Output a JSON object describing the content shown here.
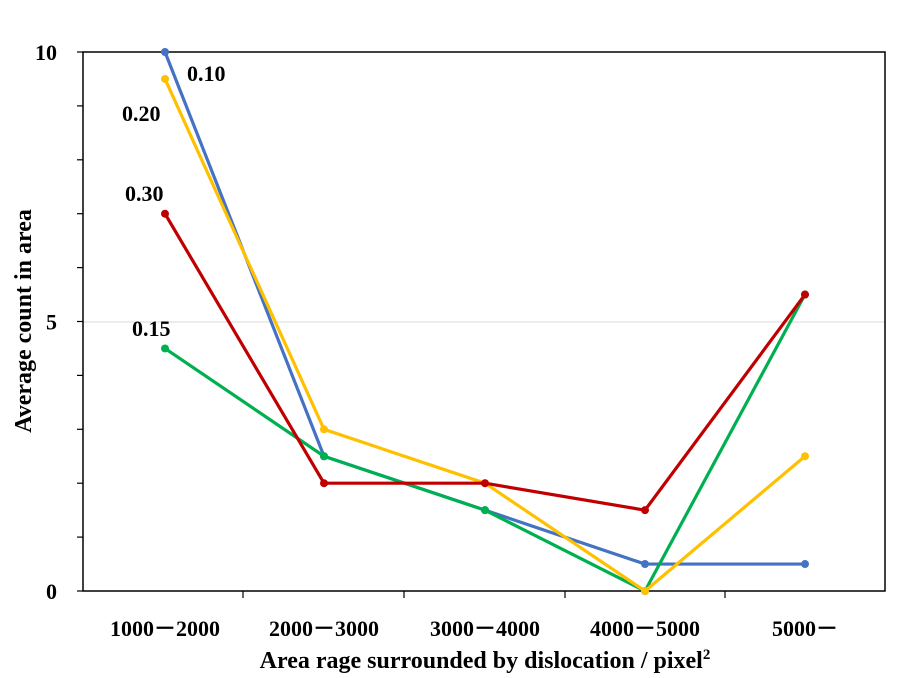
{
  "chart_data": {
    "type": "line",
    "title": "",
    "xlabel": "Area rage surrounded by dislocation  / pixel",
    "xlabel_superscript": "2",
    "ylabel": "Average  count in area",
    "categories": [
      "1000－2000",
      "2000－3000",
      "3000－4000",
      "4000－5000",
      "5000－"
    ],
    "ylim": [
      0,
      10
    ],
    "yticks": [
      "0",
      "5",
      "10"
    ],
    "grid": "horizontal line at 5",
    "legend": "none (labels placed next to first points)",
    "series": [
      {
        "name": "0.10",
        "color": "#4472C4",
        "values": [
          10,
          2.5,
          1.5,
          0.5,
          0.5
        ]
      },
      {
        "name": "0.15",
        "color": "#00B050",
        "values": [
          4.5,
          2.5,
          1.5,
          0,
          5.5
        ]
      },
      {
        "name": "0.20",
        "color": "#FFC000",
        "values": [
          9.5,
          3.0,
          2.0,
          0,
          2.5
        ]
      },
      {
        "name": "0.30",
        "color": "#C00000",
        "values": [
          7.0,
          2.0,
          2.0,
          1.5,
          5.5
        ]
      }
    ]
  }
}
